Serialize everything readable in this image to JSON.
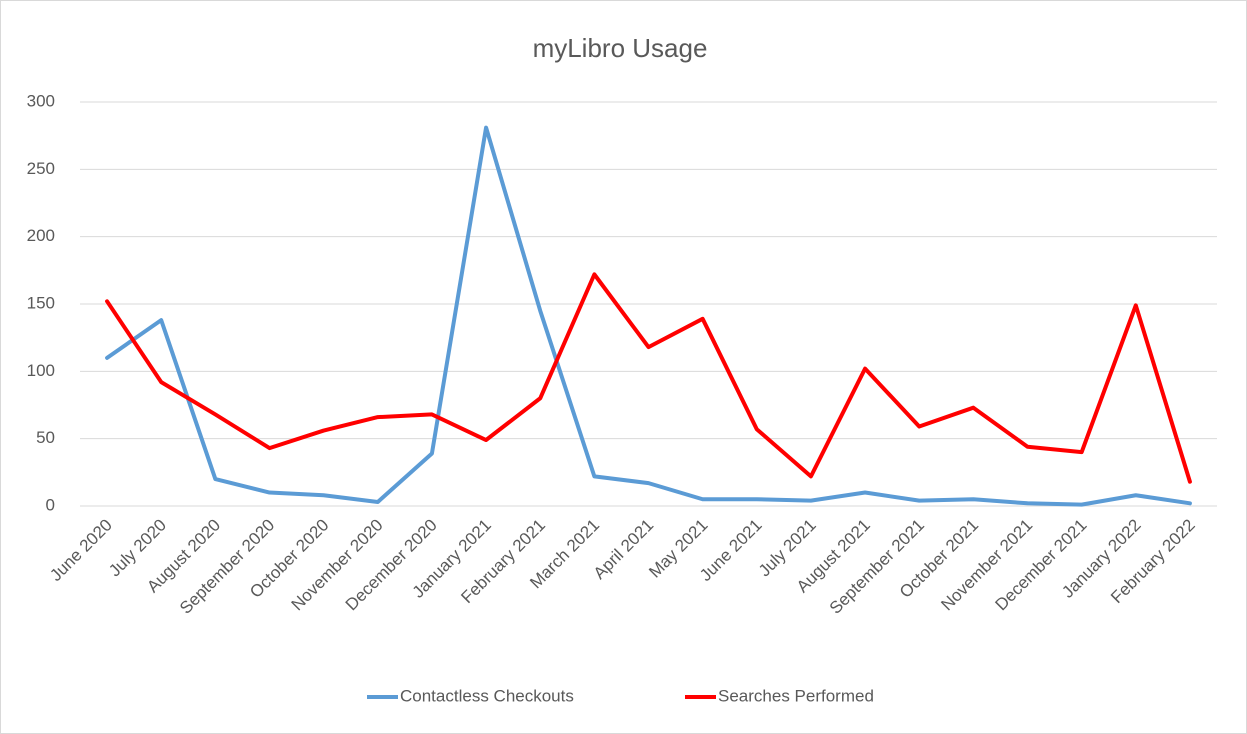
{
  "chart_data": {
    "type": "line",
    "title": "myLibro Usage",
    "categories": [
      "June 2020",
      "July 2020",
      "August 2020",
      "September 2020",
      "October 2020",
      "November 2020",
      "December 2020",
      "January 2021",
      "February 2021",
      "March 2021",
      "April 2021",
      "May 2021",
      "June 2021",
      "July 2021",
      "August 2021",
      "September 2021",
      "October 2021",
      "November 2021",
      "December 2021",
      "January 2022",
      "February 2022"
    ],
    "series": [
      {
        "name": "Contactless Checkouts",
        "color": "#5b9bd5",
        "values": [
          110,
          138,
          20,
          10,
          8,
          3,
          39,
          281,
          145,
          22,
          17,
          5,
          5,
          4,
          10,
          4,
          5,
          2,
          1,
          8,
          2
        ]
      },
      {
        "name": "Searches Performed",
        "color": "#ff0000",
        "values": [
          152,
          92,
          68,
          43,
          56,
          66,
          68,
          49,
          80,
          172,
          118,
          139,
          57,
          22,
          102,
          59,
          73,
          44,
          40,
          149,
          18
        ]
      }
    ],
    "ylim": [
      0,
      300
    ],
    "yticks": [
      0,
      50,
      100,
      150,
      200,
      250,
      300
    ],
    "grid": true,
    "legend": "bottom"
  }
}
